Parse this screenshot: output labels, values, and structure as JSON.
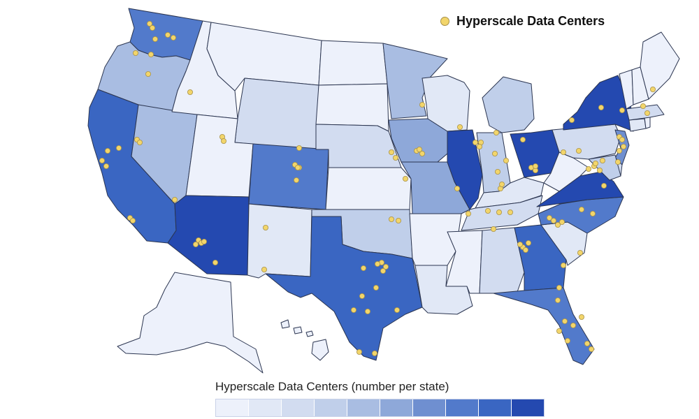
{
  "legend": {
    "marker_label": "Hyperscale Data Centers",
    "marker_color": "#f2d56b",
    "scale_title": "Hyperscale Data Centers (number per state)",
    "scale_colors": [
      "#edf1fb",
      "#e1e8f6",
      "#d2dcf0",
      "#c0cfea",
      "#a9bde2",
      "#8ea8d9",
      "#6f8fd0",
      "#527acb",
      "#3a66c2",
      "#2449b0"
    ]
  },
  "colors": {
    "state_stroke": "#2b3550",
    "background": "#ffffff"
  },
  "shading_levels": {
    "WA": 7,
    "OR": 4,
    "CA": 8,
    "NV": 4,
    "AZ": 9,
    "ID": 0,
    "MT": 0,
    "WY": 2,
    "UT": 0,
    "CO": 7,
    "NM": 1,
    "ND": 0,
    "SD": 0,
    "NE": 2,
    "KS": 0,
    "OK": 3,
    "TX": 8,
    "MN": 4,
    "IA": 5,
    "MO": 5,
    "AR": 0,
    "LA": 1,
    "WI": 1,
    "IL": 9,
    "MI": 3,
    "IN": 3,
    "OH": 9,
    "KY": 1,
    "TN": 2,
    "MS": 0,
    "AL": 2,
    "GA": 8,
    "FL": 7,
    "SC": 1,
    "NC": 7,
    "VA": 9,
    "WV": 0,
    "PA": 2,
    "NY": 9,
    "VT": 0,
    "NH": 0,
    "ME": 0,
    "MA": 2,
    "RI": 0,
    "CT": 1,
    "NJ": 6,
    "DE": 2,
    "MD": 3,
    "AK": 0,
    "HI": 0
  }
}
